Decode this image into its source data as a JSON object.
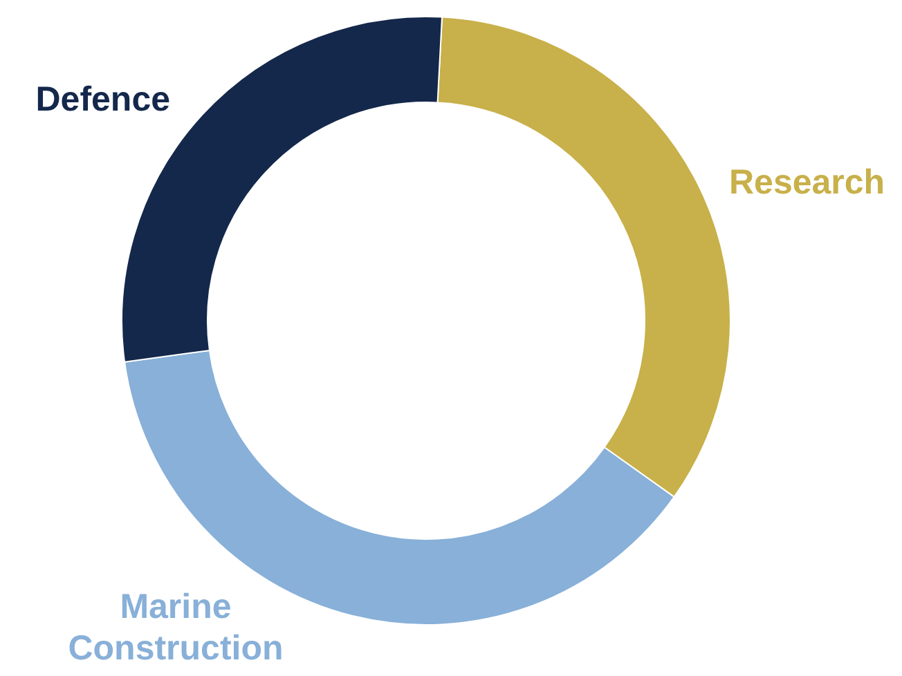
{
  "chart_data": {
    "type": "donut",
    "categories": [
      "Research",
      "Marine Construction",
      "Defence"
    ],
    "values": [
      34,
      38,
      28
    ],
    "colors": [
      "#c8b04a",
      "#88b0d8",
      "#14284b"
    ]
  }
}
